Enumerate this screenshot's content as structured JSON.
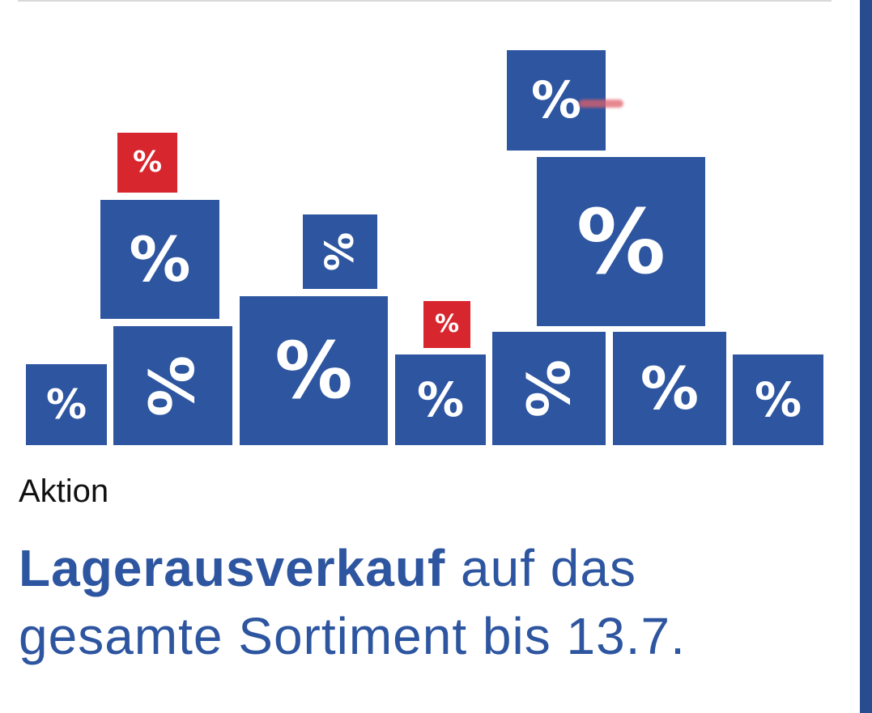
{
  "hero": {
    "boxes": [
      {
        "symbol": "%",
        "color": "#d8262f"
      },
      {
        "symbol": "%",
        "color": "#2d55a0"
      },
      {
        "symbol": "%",
        "color": "#2d55a0"
      },
      {
        "symbol": "%",
        "color": "#2d55a0"
      },
      {
        "symbol": "%",
        "color": "#2d55a0"
      },
      {
        "symbol": "%",
        "color": "#2d55a0"
      },
      {
        "symbol": "%",
        "color": "#d8262f"
      },
      {
        "symbol": "%",
        "color": "#2d55a0"
      },
      {
        "symbol": "%",
        "color": "#2d55a0"
      },
      {
        "symbol": "%",
        "color": "#2d55a0"
      },
      {
        "symbol": "%",
        "color": "#2d55a0"
      },
      {
        "symbol": "%",
        "color": "#2d55a0"
      },
      {
        "symbol": "%",
        "color": "#2d55a0"
      }
    ]
  },
  "article": {
    "kicker": "Aktion",
    "headline_bold": "Lagerausverkauf",
    "headline_rest": " auf das gesamte Sortiment bis 13.7."
  },
  "colors": {
    "brand_blue": "#2d55a0",
    "accent_red": "#d8262f"
  }
}
